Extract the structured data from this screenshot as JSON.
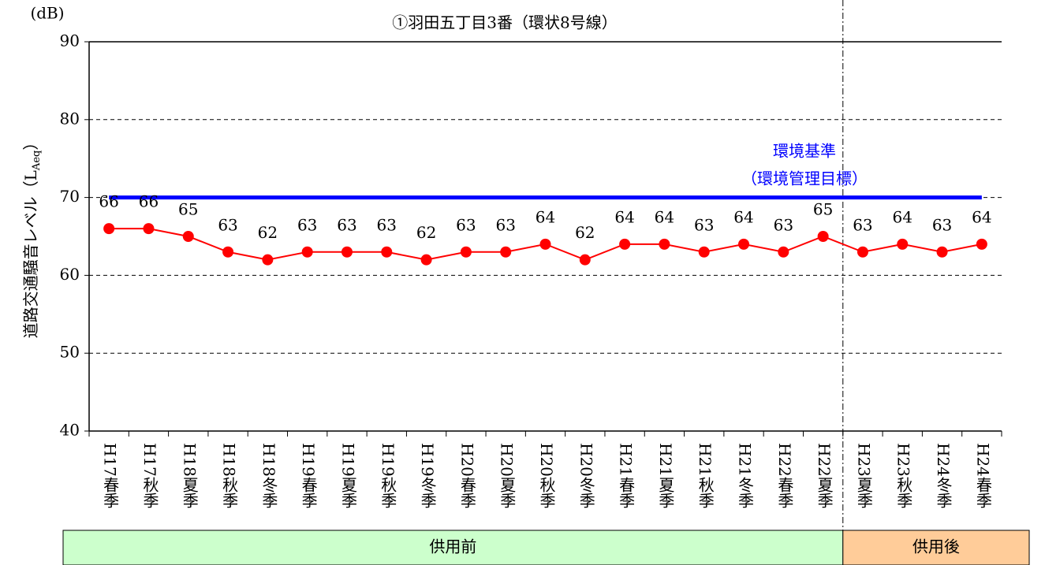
{
  "chart_data": {
    "type": "line",
    "title": "①羽田五丁目3番（環状8号線）",
    "y_unit": "(dB)",
    "y_label": [
      "道路交通騒音レベル（L",
      "Aeq",
      "）"
    ],
    "categories": [
      "H17春季",
      "H17秋季",
      "H18夏季",
      "H18秋季",
      "H18冬季",
      "H19春季",
      "H19夏季",
      "H19秋季",
      "H19冬季",
      "H20春季",
      "H20夏季",
      "H20秋季",
      "H20冬季",
      "H21春季",
      "H21夏季",
      "H21秋季",
      "H21冬季",
      "H22春季",
      "H22夏季",
      "H23夏季",
      "H23秋季",
      "H24冬季",
      "H24春季"
    ],
    "series": [
      {
        "color": "#ff0000",
        "values": [
          66,
          66,
          65,
          63,
          62,
          63,
          63,
          63,
          62,
          63,
          63,
          64,
          62,
          64,
          64,
          63,
          64,
          63,
          65,
          63,
          64,
          63,
          64
        ]
      }
    ],
    "reference_line": {
      "value": 70,
      "color": "#0000ff",
      "label": [
        "環境基準",
        "（環境管理目標）"
      ]
    },
    "ylim": [
      40,
      90
    ],
    "yticks": [
      40,
      50,
      60,
      70,
      80,
      90
    ],
    "grid": true,
    "phases": [
      {
        "label": "供用前",
        "from": "H17春季",
        "to": "H22夏季",
        "color": "#ccffcc"
      },
      {
        "label": "供用後",
        "from": "H23夏季",
        "to": "H24春季",
        "color": "#ffcc99"
      }
    ]
  }
}
